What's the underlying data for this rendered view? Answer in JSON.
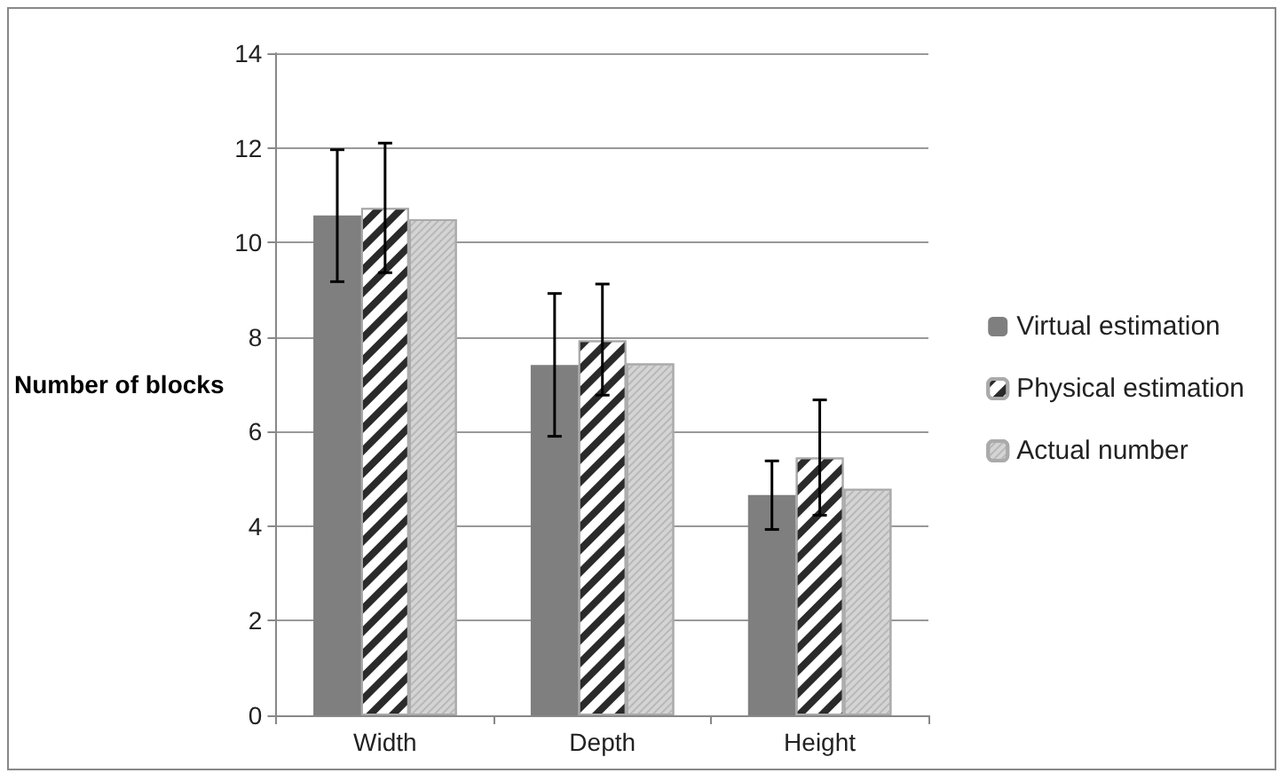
{
  "chart_data": {
    "type": "bar",
    "ylabel": "Number of blocks",
    "categories": [
      "Width",
      "Depth",
      "Height"
    ],
    "series": [
      {
        "name": "Virtual estimation",
        "color": "#7f7f7f",
        "values": [
          10.57,
          7.41,
          4.66
        ],
        "errors": [
          [
            9.17,
            11.96
          ],
          [
            5.9,
            8.92
          ],
          [
            3.93,
            5.38
          ]
        ]
      },
      {
        "name": "Physical estimation",
        "color": "#ffffff",
        "values": [
          10.73,
          7.93,
          5.45
        ],
        "errors": [
          [
            9.36,
            12.1
          ],
          [
            6.77,
            9.12
          ],
          [
            4.23,
            6.67
          ]
        ]
      },
      {
        "name": "Actual number",
        "color": "#d4d4d4",
        "values": [
          10.49,
          7.44,
          4.79
        ]
      }
    ],
    "ylim": [
      0,
      14
    ],
    "yticks": [
      0,
      2,
      4,
      6,
      8,
      10,
      12,
      14
    ],
    "grid": "y",
    "legend": "right"
  }
}
